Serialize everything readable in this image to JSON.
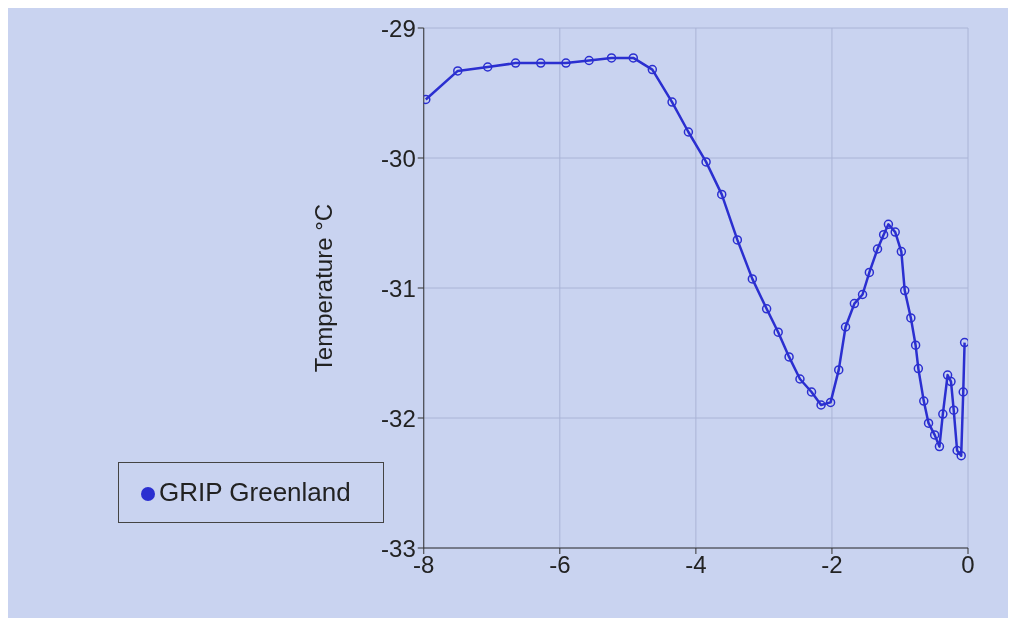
{
  "chart_data": {
    "type": "line",
    "ylabel": "Temperature °C",
    "x": [
      -7.97,
      -7.5,
      -7.06,
      -6.65,
      -6.28,
      -5.91,
      -5.57,
      -5.24,
      -4.92,
      -4.64,
      -4.35,
      -4.11,
      -3.85,
      -3.62,
      -3.39,
      -3.17,
      -2.96,
      -2.79,
      -2.63,
      -2.47,
      -2.3,
      -2.16,
      -2.02,
      -1.9,
      -1.8,
      -1.67,
      -1.55,
      -1.45,
      -1.33,
      -1.24,
      -1.17,
      -1.07,
      -0.98,
      -0.93,
      -0.84,
      -0.77,
      -0.73,
      -0.65,
      -0.58,
      -0.49,
      -0.42,
      -0.37,
      -0.3,
      -0.25,
      -0.21,
      -0.16,
      -0.1,
      -0.07,
      -0.05
    ],
    "series": [
      {
        "name": "GRIP Greenland",
        "color": "#2b2fd0",
        "values": [
          -29.55,
          -29.33,
          -29.3,
          -29.27,
          -29.27,
          -29.27,
          -29.25,
          -29.23,
          -29.23,
          -29.32,
          -29.57,
          -29.8,
          -30.03,
          -30.28,
          -30.63,
          -30.93,
          -31.16,
          -31.34,
          -31.53,
          -31.7,
          -31.8,
          -31.9,
          -31.88,
          -31.63,
          -31.3,
          -31.12,
          -31.05,
          -30.88,
          -30.7,
          -30.59,
          -30.51,
          -30.57,
          -30.72,
          -31.02,
          -31.23,
          -31.44,
          -31.62,
          -31.87,
          -32.04,
          -32.13,
          -32.22,
          -31.97,
          -31.67,
          -31.72,
          -31.94,
          -32.25,
          -32.29,
          -31.8,
          -31.42
        ]
      }
    ],
    "xlim": [
      -8,
      0
    ],
    "xticks": [
      -8,
      -6,
      -4,
      -2,
      0
    ],
    "ylim": [
      -33,
      -29
    ],
    "yticks": [
      -33,
      -32,
      -31,
      -30,
      -29
    ],
    "grid": true,
    "legend": "bottom left",
    "marker": "circle",
    "line_style": "solid"
  }
}
